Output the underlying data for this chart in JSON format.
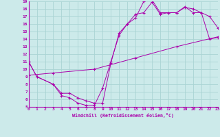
{
  "xlabel": "Windchill (Refroidissement éolien,°C)",
  "bg_color": "#cceaea",
  "grid_color": "#aad4d4",
  "line_color": "#aa00aa",
  "xlim": [
    0,
    23
  ],
  "ylim": [
    5,
    19
  ],
  "xticks": [
    0,
    1,
    2,
    3,
    4,
    5,
    6,
    7,
    8,
    9,
    10,
    11,
    12,
    13,
    14,
    15,
    16,
    17,
    18,
    19,
    20,
    21,
    22,
    23
  ],
  "yticks": [
    5,
    6,
    7,
    8,
    9,
    10,
    11,
    12,
    13,
    14,
    15,
    16,
    17,
    18,
    19
  ],
  "curve1_x": [
    0,
    1,
    3,
    4,
    5,
    6,
    7,
    8,
    9,
    10,
    11,
    12,
    13,
    14,
    15,
    16,
    17,
    18,
    19,
    20,
    21,
    22,
    23
  ],
  "curve1_y": [
    11,
    9,
    8,
    6.5,
    6.2,
    5.5,
    5.2,
    5.2,
    7.5,
    11,
    14.5,
    16,
    16.8,
    19.0,
    19.2,
    17.5,
    17.5,
    17.5,
    18.2,
    18.0,
    17.5,
    17.0,
    15.5
  ],
  "curve2_x": [
    0,
    1,
    3,
    4,
    5,
    6,
    7,
    8,
    9,
    10,
    11,
    12,
    13,
    14,
    15,
    16,
    17,
    18,
    19,
    20,
    21,
    22,
    23
  ],
  "curve2_y": [
    11,
    9,
    8,
    6.8,
    6.8,
    6.2,
    5.8,
    5.5,
    5.5,
    10.8,
    14.8,
    16.0,
    17.3,
    17.5,
    18.9,
    17.3,
    17.5,
    17.5,
    18.3,
    17.5,
    17.5,
    14.0,
    14.2
  ],
  "curve3_x": [
    0,
    3,
    8,
    13,
    18,
    23
  ],
  "curve3_y": [
    9.2,
    9.5,
    10.0,
    11.5,
    13.0,
    14.3
  ]
}
